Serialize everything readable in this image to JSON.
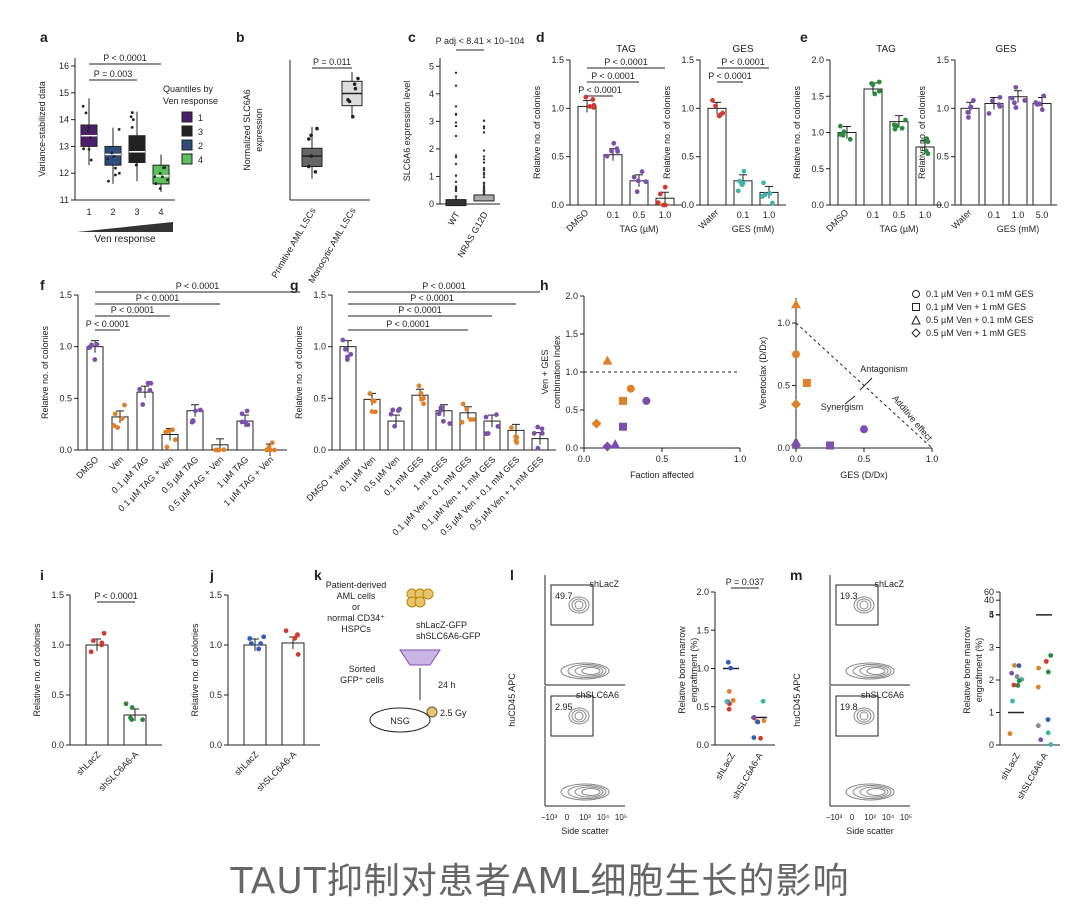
{
  "caption": "TAUT抑制对患者AML细胞生长的影响",
  "colors": {
    "purple": "#7b4fae",
    "orange": "#e0812a",
    "red": "#d33a2c",
    "teal": "#3db5a8",
    "green": "#2b8a3e",
    "blue": "#2e5db5",
    "lime": "#5cc05c",
    "darkpurple": "#4b1f6e",
    "navy": "#2f4c7d",
    "grey": "#888888"
  },
  "chart_data": [
    {
      "panel": "a",
      "type": "box",
      "ylabel": "Variance-stabilized data",
      "categories": [
        "1",
        "2",
        "3",
        "4"
      ],
      "xlabel": "Ven response",
      "yticks": [
        11,
        12,
        13,
        14,
        15,
        16
      ],
      "ylim": [
        11,
        16.3
      ],
      "legend_title": "Quantiles by Ven response",
      "legend": [
        "1",
        "3",
        "2",
        "4"
      ],
      "series": [
        {
          "name": "1",
          "q1": 13.0,
          "median": 13.4,
          "q3": 13.8,
          "min": 12.3,
          "max": 14.8,
          "color": "#4b1f6e"
        },
        {
          "name": "2",
          "q1": 12.3,
          "median": 12.7,
          "q3": 13.0,
          "min": 11.6,
          "max": 13.7,
          "color": "#2f4c7d"
        },
        {
          "name": "3",
          "q1": 12.4,
          "median": 12.8,
          "q3": 13.4,
          "min": 11.7,
          "max": 14.3,
          "color": "#222222"
        },
        {
          "name": "4",
          "q1": 11.6,
          "median": 11.9,
          "q3": 12.3,
          "min": 11.3,
          "max": 12.7,
          "color": "#5cc05c"
        }
      ],
      "annotations": [
        "P < 0.0001",
        "P = 0.003"
      ]
    },
    {
      "panel": "b",
      "type": "box",
      "ylabel": "Normalized SLC6A6 expression",
      "categories": [
        "Primitive AML LSCs",
        "Monocytic AML LSCs"
      ],
      "series": [
        {
          "q1": 0.55,
          "median": 0.72,
          "q3": 0.85,
          "min": 0.35,
          "max": 1.2
        },
        {
          "q1": 1.55,
          "median": 1.75,
          "q3": 1.95,
          "min": 1.35,
          "max": 2.1
        }
      ],
      "ylim": [
        0,
        2.3
      ],
      "annotations": [
        "P = 0.011"
      ]
    },
    {
      "panel": "c",
      "type": "box",
      "ylabel": "SLC6A6 expression level",
      "categories": [
        "WT",
        "NRAS G12D"
      ],
      "yticks": [
        0,
        1,
        2,
        3,
        4,
        5
      ],
      "ylim": [
        0,
        5.3
      ],
      "series": [
        {
          "median": 0.05,
          "max": 4.9
        },
        {
          "median": 0.22,
          "max": 3.7
        }
      ],
      "annotations": [
        "P adj < 8.41 × 10−104"
      ]
    },
    {
      "panel": "d",
      "type": "bar",
      "title": "TAG",
      "ylabel": "Relative no. of colonies",
      "categories": [
        "DMSO",
        "0.1",
        "0.5",
        "1.0"
      ],
      "xlabel": "TAG (µM)",
      "values": [
        1.02,
        0.52,
        0.25,
        0.07
      ],
      "ylim": [
        0,
        1.5
      ],
      "annotations": [
        "P < 0.0001",
        "P < 0.0001",
        "P < 0.0001"
      ]
    },
    {
      "panel": "d",
      "type": "bar",
      "title": "GES",
      "ylabel": "Relative no. of colonies",
      "categories": [
        "Water",
        "0.1",
        "1.0"
      ],
      "xlabel": "GES (mM)",
      "values": [
        1.0,
        0.25,
        0.13
      ],
      "ylim": [
        0,
        1.5
      ],
      "annotations": [
        "P < 0.0001",
        "P < 0.0001"
      ]
    },
    {
      "panel": "e",
      "type": "bar",
      "title": "TAG",
      "ylabel": "Relative no. of colonies",
      "categories": [
        "DMSO",
        "0.1",
        "0.5",
        "1.0"
      ],
      "xlabel": "TAG (µM)",
      "values": [
        1.0,
        1.6,
        1.15,
        0.8
      ],
      "ylim": [
        0,
        2.0
      ]
    },
    {
      "panel": "e",
      "type": "bar",
      "title": "GES",
      "ylabel": "Relative no. of colonies",
      "categories": [
        "Water",
        "0.1",
        "1.0",
        "5.0"
      ],
      "xlabel": "GES (mM)",
      "values": [
        1.0,
        1.05,
        1.12,
        1.05
      ],
      "ylim": [
        0,
        1.5
      ]
    },
    {
      "panel": "f",
      "type": "bar",
      "ylabel": "Relative no. of colonies",
      "categories": [
        "DMSO",
        "Ven",
        "0.1 µM TAG",
        "0.1 µM TAG + Ven",
        "0.5 µM TAG",
        "0.5 µM TAG + Ven",
        "1 µM TAG",
        "1 µM TAG + Ven"
      ],
      "values": [
        1.0,
        0.32,
        0.56,
        0.15,
        0.38,
        0.05,
        0.28,
        0.0
      ],
      "ylim": [
        0,
        1.5
      ],
      "annotations": [
        "P < 0.0001",
        "P < 0.0001",
        "P < 0.0001",
        "P < 0.0001"
      ]
    },
    {
      "panel": "g",
      "type": "bar",
      "ylabel": "Relative no. of colonies",
      "categories": [
        "DMSO + water",
        "0.1 µM Ven",
        "0.5 µM Ven",
        "0.1 mM GES",
        "1 mM GES",
        "0.1 µM Ven + 0.1 mM GES",
        "0.1 µM Ven + 1 mM GES",
        "0.5 µM Ven + 0.1 mM GES",
        "0.5 µM Ven + 1 mM GES"
      ],
      "values": [
        1.0,
        0.49,
        0.28,
        0.53,
        0.38,
        0.36,
        0.28,
        0.19,
        0.11
      ],
      "ylim": [
        0,
        1.5
      ],
      "annotations": [
        "P < 0.0001",
        "P < 0.0001",
        "P < 0.0001",
        "P < 0.0001"
      ]
    },
    {
      "panel": "h",
      "type": "scatter",
      "xlabel": "Faction affected",
      "ylabel": "Ven + GES combination Index",
      "xlim": [
        0,
        1.0
      ],
      "ylim": [
        0,
        2.0
      ],
      "points": [
        {
          "x": 0.15,
          "y": 1.15,
          "color": "orange",
          "shape": "triangle"
        },
        {
          "x": 0.3,
          "y": 0.78,
          "color": "orange",
          "shape": "circle"
        },
        {
          "x": 0.25,
          "y": 0.62,
          "color": "orange",
          "shape": "square"
        },
        {
          "x": 0.4,
          "y": 0.62,
          "color": "purple",
          "shape": "circle"
        },
        {
          "x": 0.08,
          "y": 0.32,
          "color": "orange",
          "shape": "diamond"
        },
        {
          "x": 0.25,
          "y": 0.28,
          "color": "purple",
          "shape": "square"
        },
        {
          "x": 0.2,
          "y": 0.05,
          "color": "purple",
          "shape": "triangle"
        },
        {
          "x": 0.15,
          "y": 0.02,
          "color": "purple",
          "shape": "diamond"
        }
      ],
      "reference_line": 1.0
    },
    {
      "panel": "h",
      "type": "scatter",
      "xlabel": "GES (D/Dx)",
      "ylabel": "Venetoclax (D/Dx)",
      "xlim": [
        0,
        1.0
      ],
      "ylim": [
        0,
        1.2
      ],
      "points": [
        {
          "x": 0.0,
          "y": 1.15,
          "color": "orange",
          "shape": "triangle"
        },
        {
          "x": 0.0,
          "y": 0.75,
          "color": "orange",
          "shape": "circle"
        },
        {
          "x": 0.08,
          "y": 0.52,
          "color": "orange",
          "shape": "square"
        },
        {
          "x": 0.0,
          "y": 0.35,
          "color": "orange",
          "shape": "diamond"
        },
        {
          "x": 0.5,
          "y": 0.15,
          "color": "purple",
          "shape": "circle"
        },
        {
          "x": 0.25,
          "y": 0.02,
          "color": "purple",
          "shape": "square"
        },
        {
          "x": 0.0,
          "y": 0.05,
          "color": "purple",
          "shape": "triangle"
        },
        {
          "x": 0.0,
          "y": 0.02,
          "color": "purple",
          "shape": "diamond"
        }
      ],
      "text_labels": [
        "Antagonism",
        "Synergism",
        "Additive effect"
      ],
      "legend": [
        "0.1 µM Ven + 0.1 mM GES",
        "0.1 µM Ven + 1 mM GES",
        "0.5 µM Ven + 0.1 mM GES",
        "0.5 µM Ven + 1 mM GES"
      ]
    },
    {
      "panel": "i",
      "type": "bar",
      "ylabel": "Relative no. of colonies",
      "categories": [
        "shLacZ",
        "shSLC6A6-A"
      ],
      "values": [
        1.0,
        0.3
      ],
      "ylim": [
        0,
        1.5
      ],
      "annotations": [
        "P < 0.0001"
      ]
    },
    {
      "panel": "j",
      "type": "bar",
      "ylabel": "Relative no. of colonies",
      "categories": [
        "shLacZ",
        "shSLC6A6-A"
      ],
      "values": [
        1.0,
        1.02
      ],
      "ylim": [
        0,
        1.5
      ]
    },
    {
      "panel": "l",
      "type": "scatter",
      "ylabel": "Relative bone marrow engraftment (%)",
      "categories": [
        "shLacZ",
        "shSLC6A6-A"
      ],
      "medians": [
        1.0,
        0.36
      ],
      "ylim": [
        0,
        2.0
      ],
      "annotations": [
        "P = 0.037"
      ]
    },
    {
      "panel": "m",
      "type": "scatter",
      "ylabel": "Relative bone marrow engraftment (%)",
      "categories": [
        "shLacZ",
        "shSLC6A6-A"
      ],
      "medians": [
        1.0,
        4.3
      ],
      "annotations": []
    }
  ],
  "panels": {
    "a": "a",
    "b": "b",
    "c": "c",
    "d": "d",
    "e": "e",
    "f": "f",
    "g": "g",
    "h": "h",
    "i": "i",
    "j": "j",
    "k": "k",
    "l": "l",
    "m": "m"
  },
  "flow": {
    "l": {
      "top_label": "shLacZ",
      "top_value": "49.7",
      "bottom_label": "shSLC6A6",
      "bottom_value": "2.95",
      "xaxis": "Side scatter",
      "yaxis": "huCD45 APC"
    },
    "m": {
      "top_label": "shLacZ",
      "top_value": "19.3",
      "bottom_label": "shSLC6A6",
      "bottom_value": "19.8",
      "xaxis": "Side scatter",
      "yaxis": "huCD45 APC"
    },
    "ticks": [
      "−10³",
      "0",
      "10³",
      "10⁴",
      "10⁵"
    ]
  },
  "schematic": {
    "source": [
      "Patient-derived",
      "AML cells",
      "or",
      "normal CD34⁺",
      "HSPCs"
    ],
    "vectors": [
      "shLacZ-GFP",
      "shSLC6A6-GFP"
    ],
    "sorted": [
      "Sorted",
      "GFP⁺ cells"
    ],
    "time": "24 h",
    "mouse": "NSG",
    "dose": "2.5 Gy"
  }
}
